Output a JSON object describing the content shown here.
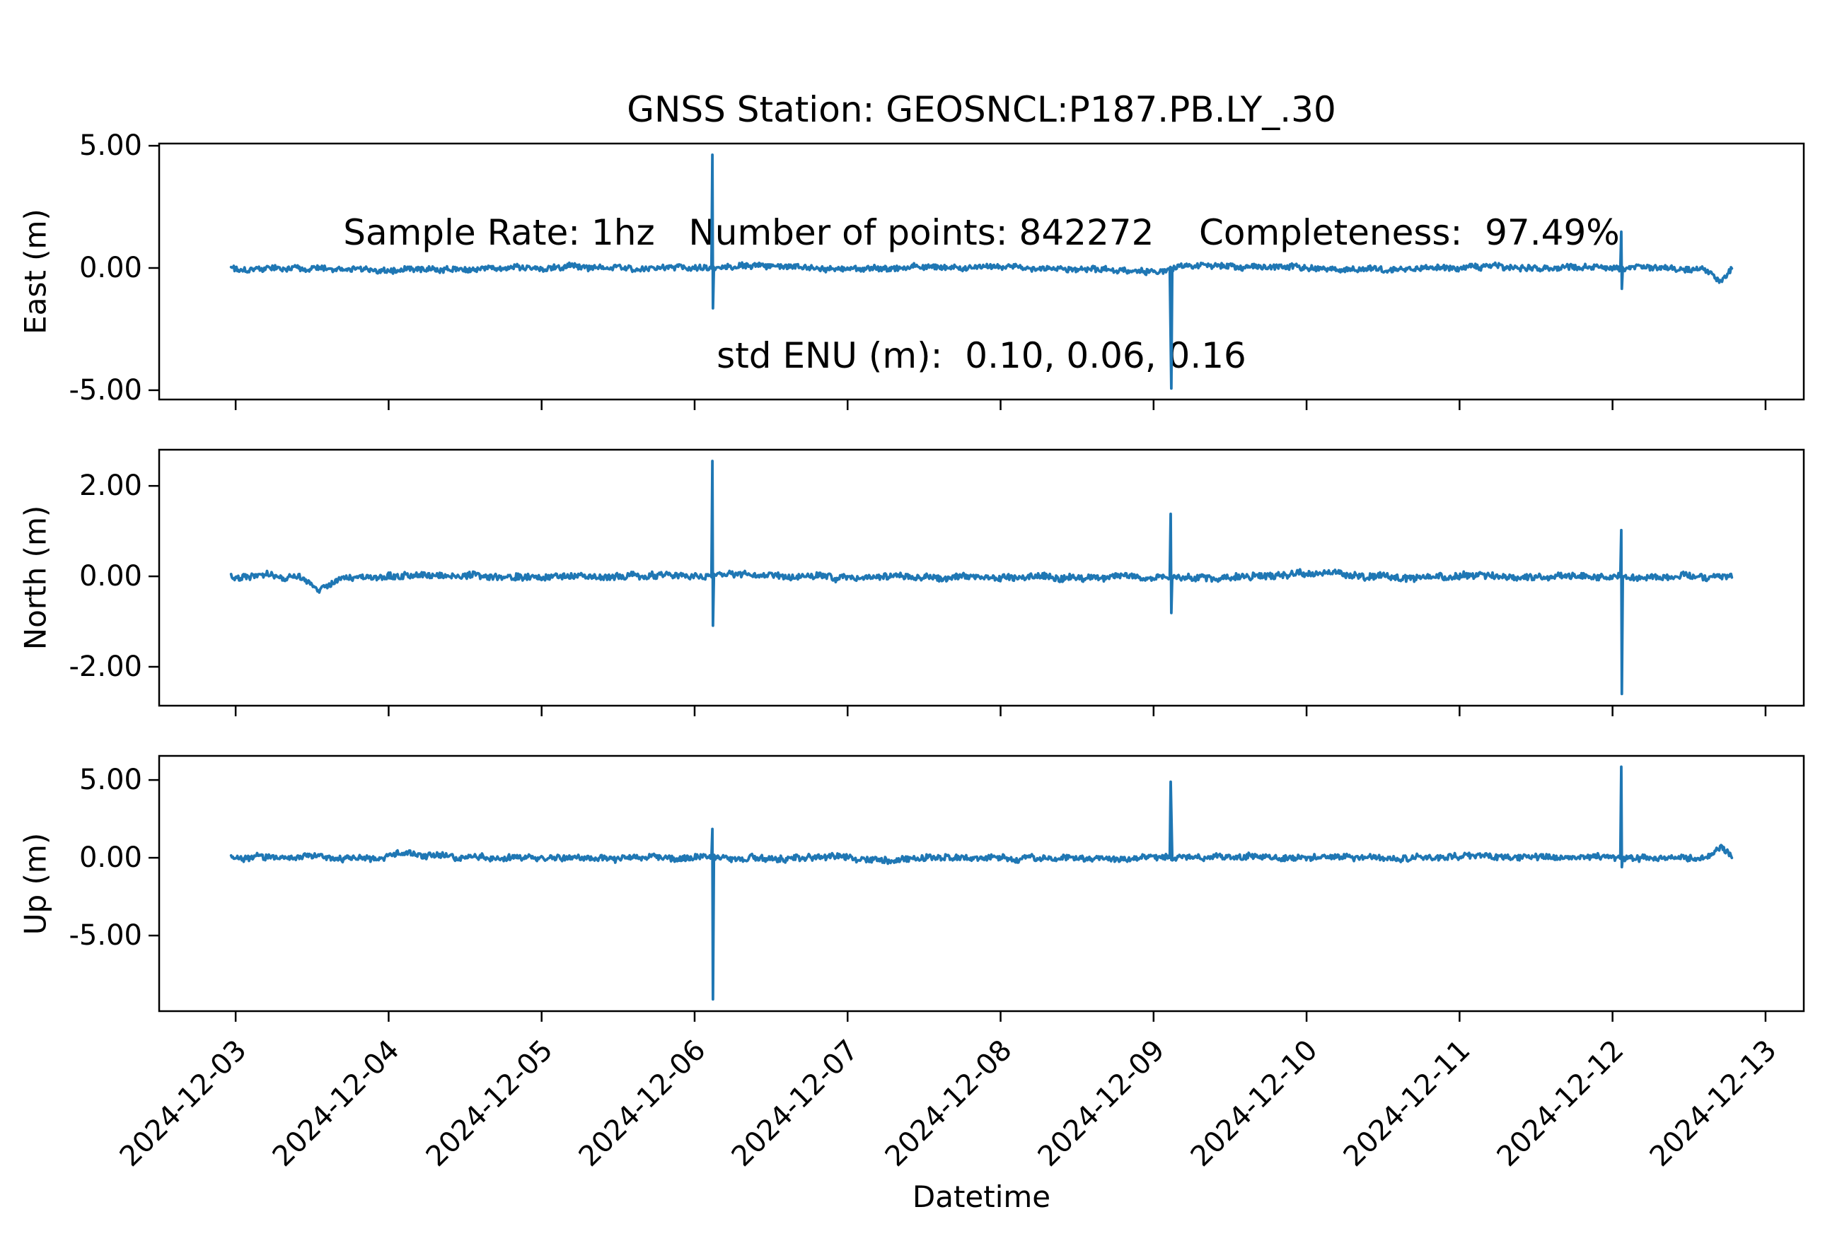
{
  "title": {
    "line1": "GNSS Station: GEOSNCL:P187.PB.LY_.30",
    "line2": "Sample Rate: 1hz   Number of points: 842272    Completeness:  97.49%",
    "line3": "std ENU (m):  0.10, 0.06, 0.16"
  },
  "stats": {
    "station": "GEOSNCL:P187.PB.LY_.30",
    "sample_rate": "1hz",
    "number_of_points": "842272",
    "completeness": "97.49%",
    "std_enu_m": "0.10, 0.06, 0.16"
  },
  "chart_data": {
    "type": "line",
    "line_color": "#1f77b4",
    "axis_color": "#000000",
    "xlabel": "Datetime",
    "x_tick_labels": [
      "2024-12-03",
      "2024-12-04",
      "2024-12-05",
      "2024-12-06",
      "2024-12-07",
      "2024-12-08",
      "2024-12-09",
      "2024-12-10",
      "2024-12-11",
      "2024-12-12",
      "2024-12-13"
    ],
    "x_tick_days": [
      0,
      1,
      2,
      3,
      4,
      5,
      6,
      7,
      8,
      9,
      10
    ],
    "xlim_days": [
      -0.5,
      10.25
    ],
    "data_day_range": [
      -0.03,
      9.78
    ],
    "samples_per_day": 170,
    "grid": false,
    "legend": null,
    "panels": [
      {
        "name": "East",
        "ylabel": "East (m)",
        "ytick_values": [
          5,
          0,
          -5
        ],
        "ytick_labels": [
          "5.00",
          "0.00",
          "-5.00"
        ],
        "ylim": [
          -5.38,
          5.09
        ],
        "baseline": 0.0,
        "noise_std": 0.1,
        "features": [
          {
            "day": 0.9,
            "width": 0.35,
            "amp": -0.06
          },
          {
            "day": 3.3,
            "width": 0.12,
            "amp": 0.12
          },
          {
            "day": 5.95,
            "width": 0.22,
            "amp": -0.16
          },
          {
            "day": 6.3,
            "width": 0.15,
            "amp": 0.1
          },
          {
            "day": 9.7,
            "width": 0.06,
            "amp": -0.55
          }
        ],
        "spikes": [
          {
            "day": 3.116,
            "up": 4.63,
            "down": -1.65
          },
          {
            "day": 6.112,
            "up": null,
            "down": -4.93
          },
          {
            "day": 9.057,
            "up": 1.48,
            "down": -0.85
          }
        ],
        "seed": 101
      },
      {
        "name": "North",
        "ylabel": "North (m)",
        "ytick_values": [
          2,
          0,
          -2
        ],
        "ytick_labels": [
          "2.00",
          "0.00",
          "-2.00"
        ],
        "ylim": [
          -2.86,
          2.8
        ],
        "baseline": 0.0,
        "noise_std": 0.06,
        "features": [
          {
            "day": 0.55,
            "width": 0.1,
            "amp": -0.3
          },
          {
            "day": 3.25,
            "width": 0.12,
            "amp": 0.12
          },
          {
            "day": 7.1,
            "width": 0.3,
            "amp": 0.05
          }
        ],
        "spikes": [
          {
            "day": 3.116,
            "up": 2.55,
            "down": -1.09
          },
          {
            "day": 6.112,
            "up": 1.38,
            "down": -0.81
          },
          {
            "day": 9.057,
            "up": 1.02,
            "down": -2.6
          }
        ],
        "seed": 202
      },
      {
        "name": "Up",
        "ylabel": "Up (m)",
        "ytick_values": [
          5,
          0,
          -5
        ],
        "ytick_labels": [
          "5.00",
          "0.00",
          "-5.00"
        ],
        "ylim": [
          -9.86,
          6.55
        ],
        "baseline": 0.0,
        "noise_std": 0.16,
        "features": [
          {
            "day": 1.05,
            "width": 0.15,
            "amp": 0.25
          },
          {
            "day": 6.5,
            "width": 0.25,
            "amp": 0.12
          },
          {
            "day": 9.7,
            "width": 0.05,
            "amp": 0.55
          }
        ],
        "spikes": [
          {
            "day": 3.116,
            "up": 1.85,
            "down": -9.1
          },
          {
            "day": 6.112,
            "up": 4.88,
            "down": null
          },
          {
            "day": 9.057,
            "up": 5.85,
            "down": -0.6
          }
        ],
        "seed": 303
      }
    ]
  }
}
